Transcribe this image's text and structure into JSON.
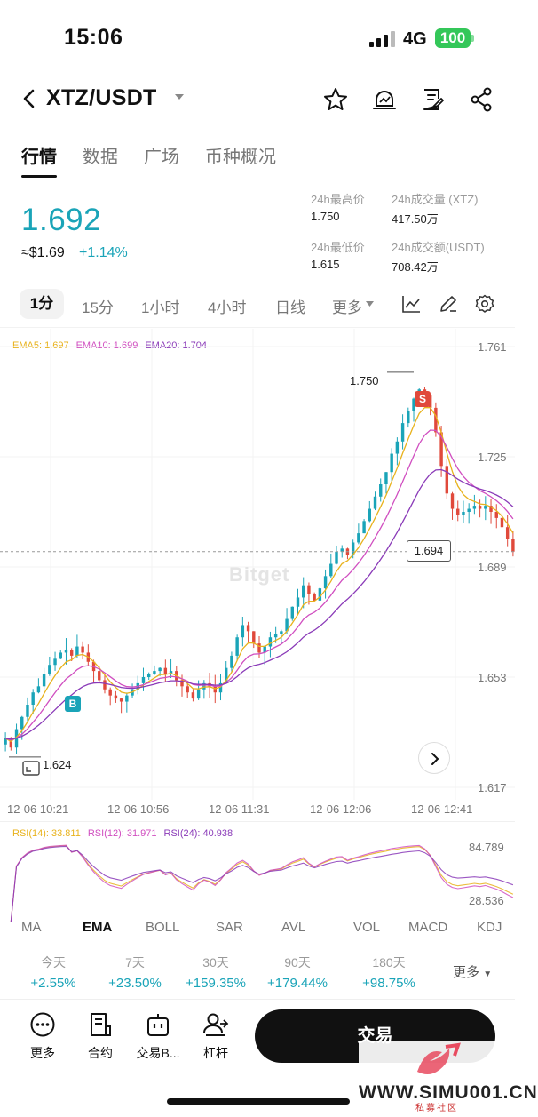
{
  "status_bar": {
    "time": "15:06",
    "network": "4G",
    "battery": "100"
  },
  "header": {
    "pair": "XTZ/USDT"
  },
  "tabs": [
    {
      "label": "行情",
      "active": true
    },
    {
      "label": "数据",
      "active": false
    },
    {
      "label": "广场",
      "active": false
    },
    {
      "label": "币种概况",
      "active": false
    }
  ],
  "ticker": {
    "last_price": "1.692",
    "usd_price": "≈$1.69",
    "change": "+1.14%",
    "high_label": "24h最高价",
    "high": "1.750",
    "low_label": "24h最低价",
    "low": "1.615",
    "vol_label": "24h成交量 (XTZ)",
    "vol": "417.50万",
    "amt_label": "24h成交额(USDT)",
    "amt": "708.42万"
  },
  "timeframes": [
    "1分",
    "15分",
    "1小时",
    "4小时",
    "日线",
    "更多"
  ],
  "colors": {
    "up": "#1aa4b8",
    "down": "#e0493b",
    "ema5": "#e8b21c",
    "ema10": "#d04ec0",
    "ema20": "#8a3ab8"
  },
  "chart_data": {
    "type": "candlestick",
    "indicator_legend": {
      "ema5": "EMA5: 1.697",
      "ema10": "EMA10: 1.699",
      "ema20": "EMA20: 1.704"
    },
    "y_axis": [
      "1.761",
      "1.725",
      "1.689",
      "1.653",
      "1.617"
    ],
    "ylim": [
      1.617,
      1.761
    ],
    "x_axis": [
      "12-06 10:21",
      "12-06 10:56",
      "12-06 11:31",
      "12-06 12:06",
      "12-06 12:41"
    ],
    "high_marker": "1.750",
    "low_marker": "1.624",
    "current_price_tag": "1.694",
    "buy_marker": "B",
    "sell_marker": "S",
    "watermark": "Bitget",
    "close_series": [
      1.633,
      1.63,
      1.636,
      1.64,
      1.644,
      1.648,
      1.65,
      1.654,
      1.657,
      1.659,
      1.661,
      1.662,
      1.66,
      1.663,
      1.661,
      1.658,
      1.655,
      1.652,
      1.649,
      1.647,
      1.646,
      1.645,
      1.647,
      1.649,
      1.651,
      1.653,
      1.654,
      1.655,
      1.656,
      1.654,
      1.655,
      1.652,
      1.65,
      1.648,
      1.646,
      1.649,
      1.651,
      1.65,
      1.648,
      1.651,
      1.656,
      1.66,
      1.666,
      1.67,
      1.668,
      1.664,
      1.661,
      1.663,
      1.666,
      1.667,
      1.668,
      1.672,
      1.676,
      1.679,
      1.683,
      1.68,
      1.678,
      1.682,
      1.686,
      1.69,
      1.694,
      1.695,
      1.693,
      1.697,
      1.7,
      1.704,
      1.708,
      1.712,
      1.716,
      1.72,
      1.726,
      1.73,
      1.736,
      1.74,
      1.744,
      1.747,
      1.745,
      1.741,
      1.733,
      1.722,
      1.713,
      1.708,
      1.706,
      1.707,
      1.708,
      1.709,
      1.708,
      1.709,
      1.707,
      1.705,
      1.702,
      1.698,
      1.694
    ]
  },
  "rsi": {
    "legend": {
      "rsi14": "RSI(14): 33.811",
      "rsi12": "RSI(12): 31.971",
      "rsi24": "RSI(24): 40.938"
    },
    "y_axis": [
      "84.789",
      "28.536"
    ]
  },
  "indicator_tabs": [
    "MA",
    "EMA",
    "BOLL",
    "SAR",
    "AVL",
    "VOL",
    "MACD",
    "KDJ"
  ],
  "performance": [
    {
      "label": "今天",
      "value": "+2.55%"
    },
    {
      "label": "7天",
      "value": "+23.50%"
    },
    {
      "label": "30天",
      "value": "+159.35%"
    },
    {
      "label": "90天",
      "value": "+179.44%"
    },
    {
      "label": "180天",
      "value": "+98.75%"
    }
  ],
  "performance_more": "更多",
  "bottom_nav": [
    {
      "label": "更多",
      "icon": "more-circle-icon"
    },
    {
      "label": "合约",
      "icon": "contract-doc-icon"
    },
    {
      "label": "交易B...",
      "icon": "trading-bot-icon"
    },
    {
      "label": "杠杆",
      "icon": "leverage-user-icon"
    }
  ],
  "trade_button": "交易",
  "watermark_site": {
    "text": "WWW.SIMU001.CN",
    "sub": "私募社区"
  }
}
